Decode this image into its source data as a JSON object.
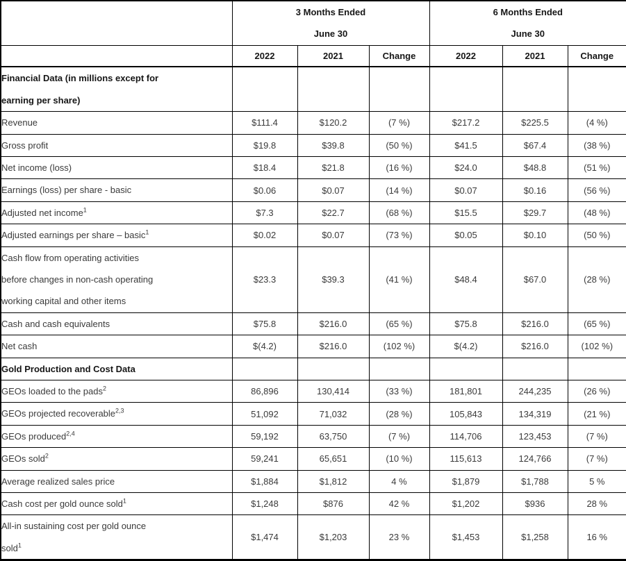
{
  "table": {
    "header": {
      "groups": [
        {
          "line1": "3 Months Ended",
          "line2": "June 30"
        },
        {
          "line1": "6 Months Ended",
          "line2": "June 30"
        }
      ],
      "year_columns": [
        "2022",
        "2021",
        "Change",
        "2022",
        "2021",
        "Change"
      ]
    },
    "rows": [
      {
        "bold": true,
        "lines": [
          "Financial Data (in millions except for",
          "earning per share)"
        ],
        "sup": "",
        "values": [
          "",
          "",
          "",
          "",
          "",
          ""
        ]
      },
      {
        "bold": false,
        "lines": [
          "Revenue"
        ],
        "sup": "",
        "values": [
          "$111.4",
          "$120.2",
          "(7 %)",
          "$217.2",
          "$225.5",
          "(4 %)"
        ]
      },
      {
        "bold": false,
        "lines": [
          "Gross profit"
        ],
        "sup": "",
        "values": [
          "$19.8",
          "$39.8",
          "(50 %)",
          "$41.5",
          "$67.4",
          "(38 %)"
        ]
      },
      {
        "bold": false,
        "lines": [
          "Net income (loss)"
        ],
        "sup": "",
        "values": [
          "$18.4",
          "$21.8",
          "(16 %)",
          "$24.0",
          "$48.8",
          "(51 %)"
        ]
      },
      {
        "bold": false,
        "lines": [
          "Earnings (loss) per share - basic"
        ],
        "sup": "",
        "values": [
          "$0.06",
          "$0.07",
          "(14 %)",
          "$0.07",
          "$0.16",
          "(56 %)"
        ]
      },
      {
        "bold": false,
        "lines": [
          "Adjusted net income"
        ],
        "sup": "1",
        "values": [
          "$7.3",
          "$22.7",
          "(68 %)",
          "$15.5",
          "$29.7",
          "(48 %)"
        ]
      },
      {
        "bold": false,
        "lines": [
          "Adjusted earnings per share – basic"
        ],
        "sup": "1",
        "values": [
          "$0.02",
          "$0.07",
          "(73 %)",
          "$0.05",
          "$0.10",
          "(50 %)"
        ]
      },
      {
        "bold": false,
        "lines": [
          "Cash flow from operating activities",
          "before changes in non-cash operating",
          "working capital and other items"
        ],
        "sup": "",
        "values": [
          "$23.3",
          "$39.3",
          "(41 %)",
          "$48.4",
          "$67.0",
          "(28 %)"
        ]
      },
      {
        "bold": false,
        "lines": [
          "Cash and cash equivalents"
        ],
        "sup": "",
        "values": [
          "$75.8",
          "$216.0",
          "(65 %)",
          "$75.8",
          "$216.0",
          "(65 %)"
        ]
      },
      {
        "bold": false,
        "lines": [
          "Net cash"
        ],
        "sup": "",
        "values": [
          "$(4.2)",
          "$216.0",
          "(102 %)",
          "$(4.2)",
          "$216.0",
          "(102 %)"
        ]
      },
      {
        "bold": true,
        "lines": [
          "Gold Production and Cost Data"
        ],
        "sup": "",
        "values": [
          "",
          "",
          "",
          "",
          "",
          ""
        ]
      },
      {
        "bold": false,
        "lines": [
          "GEOs loaded to the pads"
        ],
        "sup": "2",
        "values": [
          "86,896",
          "130,414",
          "(33 %)",
          "181,801",
          "244,235",
          "(26 %)"
        ]
      },
      {
        "bold": false,
        "lines": [
          "GEOs projected recoverable"
        ],
        "sup": "2,3",
        "values": [
          "51,092",
          "71,032",
          "(28 %)",
          "105,843",
          "134,319",
          "(21 %)"
        ]
      },
      {
        "bold": false,
        "lines": [
          "GEOs produced"
        ],
        "sup": "2,4",
        "values": [
          "59,192",
          "63,750",
          "(7 %)",
          "114,706",
          "123,453",
          "(7 %)"
        ]
      },
      {
        "bold": false,
        "lines": [
          "GEOs sold"
        ],
        "sup": "2",
        "values": [
          "59,241",
          "65,651",
          "(10 %)",
          "115,613",
          "124,766",
          "(7 %)"
        ]
      },
      {
        "bold": false,
        "lines": [
          "Average realized sales price"
        ],
        "sup": "",
        "values": [
          "$1,884",
          "$1,812",
          "4 %",
          "$1,879",
          "$1,788",
          "5 %"
        ]
      },
      {
        "bold": false,
        "lines": [
          "Cash cost per gold ounce sold"
        ],
        "sup": "1",
        "values": [
          "$1,248",
          "$876",
          "42 %",
          "$1,202",
          "$936",
          "28 %"
        ]
      },
      {
        "bold": false,
        "lines": [
          "All-in sustaining cost per gold ounce",
          "sold"
        ],
        "sup": "1",
        "values": [
          "$1,474",
          "$1,203",
          "23 %",
          "$1,453",
          "$1,258",
          "16 %"
        ]
      }
    ]
  }
}
